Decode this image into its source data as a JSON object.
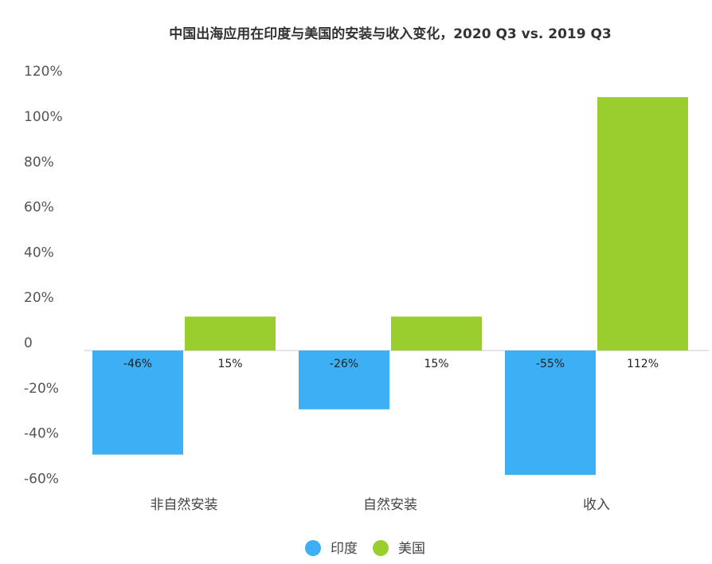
{
  "chart_data": {
    "type": "bar",
    "title": "中国出海应用在印度与美国的安装与收入变化，2020 Q3 vs. 2019 Q3",
    "categories": [
      "非自然安装",
      "自然安装",
      "收入"
    ],
    "series": [
      {
        "name": "印度",
        "values": [
          -46,
          -26,
          -55
        ],
        "labels": [
          "-46%",
          "-26%",
          "-55%"
        ],
        "color": "#3DAFF5"
      },
      {
        "name": "美国",
        "values": [
          15,
          15,
          112
        ],
        "labels": [
          "15%",
          "15%",
          "112%"
        ],
        "color": "#9ACD2E"
      }
    ],
    "ylim": [
      -60,
      120
    ],
    "yticks": [
      "120%",
      "100%",
      "80%",
      "60%",
      "40%",
      "20%",
      "0",
      "-20%",
      "-40%",
      "-60%"
    ],
    "ytick_values": [
      120,
      100,
      80,
      60,
      40,
      20,
      0,
      -20,
      -40,
      -60
    ],
    "grid": false,
    "legend": "bottom"
  }
}
